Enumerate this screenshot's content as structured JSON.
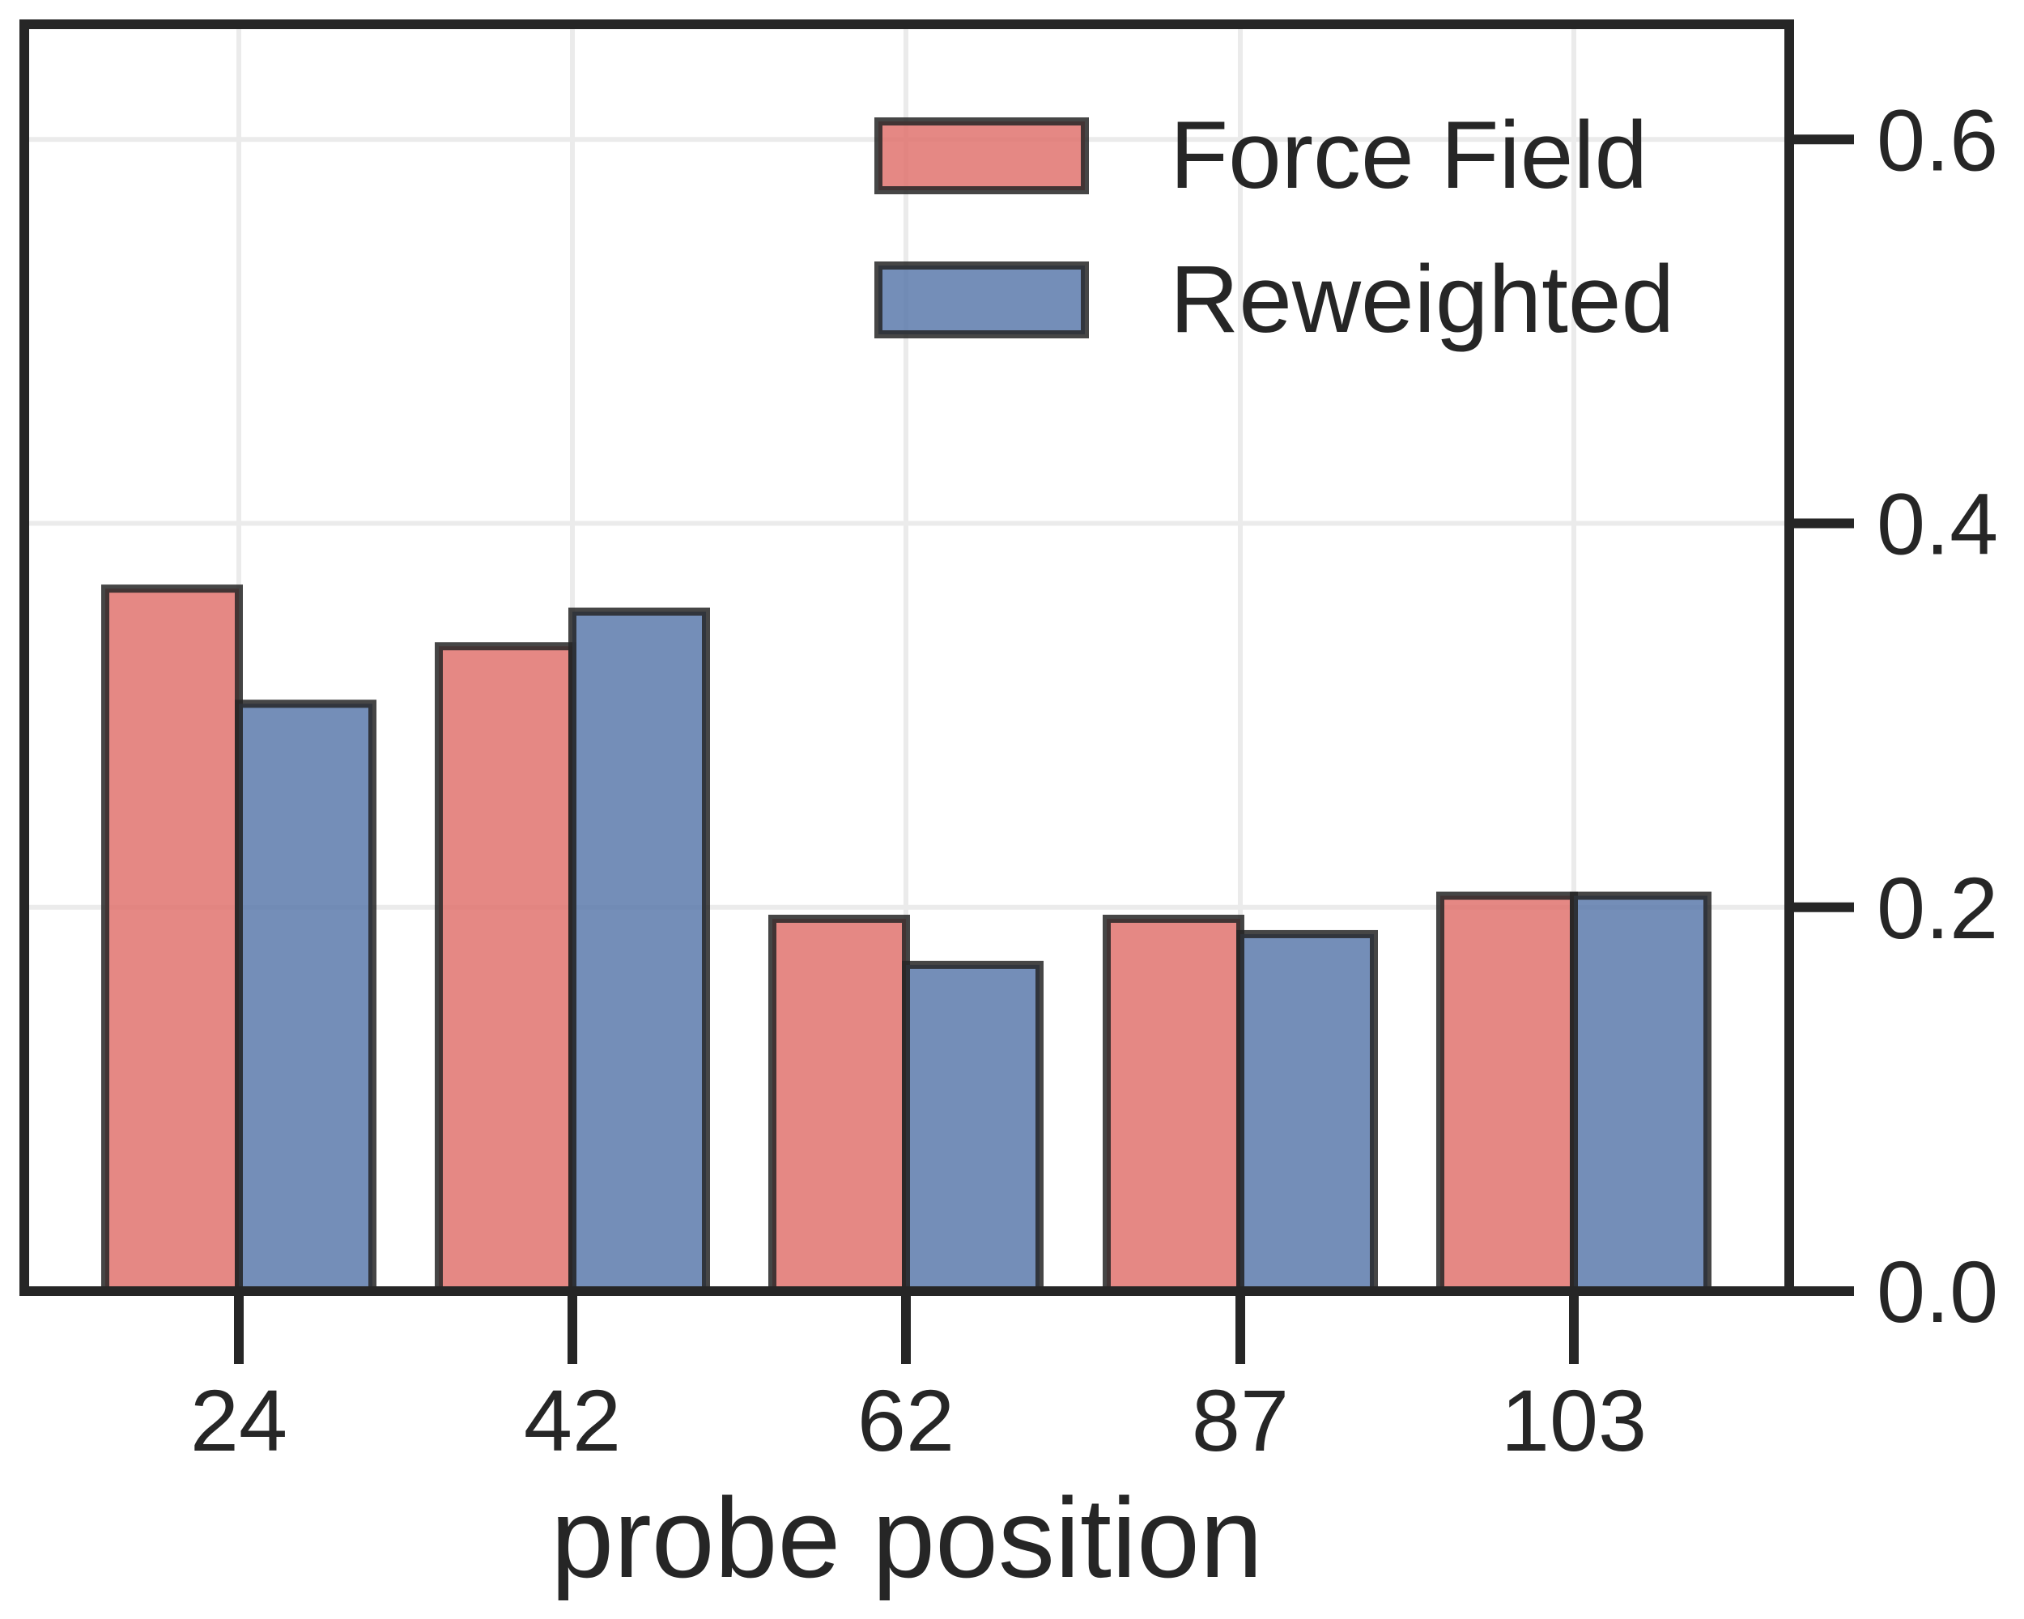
{
  "chart_data": {
    "type": "bar",
    "xlabel": "probe position",
    "ylabel": "",
    "categories": [
      "24",
      "42",
      "62",
      "87",
      "103"
    ],
    "series": [
      {
        "name": "Force Field",
        "color": "#e1736f",
        "values": [
          0.366,
          0.336,
          0.194,
          0.194,
          0.206
        ]
      },
      {
        "name": "Reweighted",
        "color": "#5c7aab",
        "values": [
          0.306,
          0.354,
          0.17,
          0.186,
          0.206
        ]
      }
    ],
    "ylim": [
      0,
      0.66
    ],
    "yticks": [
      "0.0",
      "0.2",
      "0.4",
      "0.6"
    ],
    "ytick_values": [
      0.0,
      0.2,
      0.4,
      0.6
    ],
    "y_axis_side": "right",
    "grid": true,
    "legend_position": "top-right"
  }
}
